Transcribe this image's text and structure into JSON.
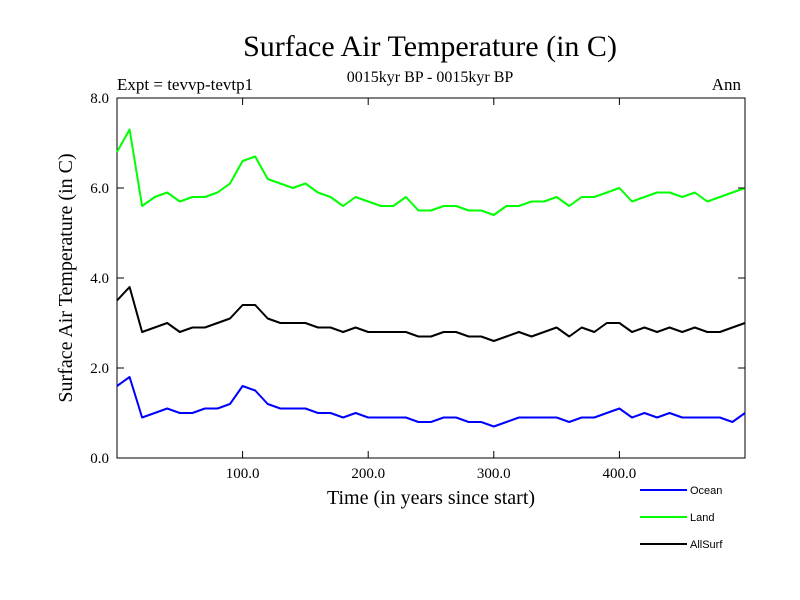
{
  "chart_data": {
    "type": "line",
    "title": "Surface Air Temperature (in C)",
    "subtitle": "0015kyr BP - 0015kyr BP",
    "expt_label": "Expt = tevvp-tevtp1",
    "season_label": "Ann",
    "xlabel": "Time (in years since start)",
    "ylabel": "Surface Air Temperature (in C)",
    "xlim": [
      0,
      500
    ],
    "ylim": [
      0,
      8
    ],
    "x_ticks": [
      100,
      200,
      300,
      400
    ],
    "x_tick_labels": [
      "100.0",
      "200.0",
      "300.0",
      "400.0"
    ],
    "y_ticks": [
      0,
      2,
      4,
      6,
      8
    ],
    "y_tick_labels": [
      "0.0",
      "2.0",
      "4.0",
      "6.0",
      "8.0"
    ],
    "grid": false,
    "legend_position": "bottom-right",
    "x_step": 10,
    "series": [
      {
        "name": "Land",
        "color": "#00ff00",
        "values": [
          6.8,
          7.3,
          5.6,
          5.8,
          5.9,
          5.7,
          5.8,
          5.8,
          5.9,
          6.1,
          6.6,
          6.7,
          6.2,
          6.1,
          6.0,
          6.1,
          5.9,
          5.8,
          5.6,
          5.8,
          5.7,
          5.6,
          5.6,
          5.8,
          5.5,
          5.5,
          5.6,
          5.6,
          5.5,
          5.5,
          5.4,
          5.6,
          5.6,
          5.7,
          5.7,
          5.8,
          5.6,
          5.8,
          5.8,
          5.9,
          6.0,
          5.7,
          5.8,
          5.9,
          5.9,
          5.8,
          5.9,
          5.7,
          5.8,
          5.9,
          6.0
        ]
      },
      {
        "name": "AllSurf",
        "color": "#000000",
        "values": [
          3.5,
          3.8,
          2.8,
          2.9,
          3.0,
          2.8,
          2.9,
          2.9,
          3.0,
          3.1,
          3.4,
          3.4,
          3.1,
          3.0,
          3.0,
          3.0,
          2.9,
          2.9,
          2.8,
          2.9,
          2.8,
          2.8,
          2.8,
          2.8,
          2.7,
          2.7,
          2.8,
          2.8,
          2.7,
          2.7,
          2.6,
          2.7,
          2.8,
          2.7,
          2.8,
          2.9,
          2.7,
          2.9,
          2.8,
          3.0,
          3.0,
          2.8,
          2.9,
          2.8,
          2.9,
          2.8,
          2.9,
          2.8,
          2.8,
          2.9,
          3.0
        ]
      },
      {
        "name": "Ocean",
        "color": "#0000ff",
        "values": [
          1.6,
          1.8,
          0.9,
          1.0,
          1.1,
          1.0,
          1.0,
          1.1,
          1.1,
          1.2,
          1.6,
          1.5,
          1.2,
          1.1,
          1.1,
          1.1,
          1.0,
          1.0,
          0.9,
          1.0,
          0.9,
          0.9,
          0.9,
          0.9,
          0.8,
          0.8,
          0.9,
          0.9,
          0.8,
          0.8,
          0.7,
          0.8,
          0.9,
          0.9,
          0.9,
          0.9,
          0.8,
          0.9,
          0.9,
          1.0,
          1.1,
          0.9,
          1.0,
          0.9,
          1.0,
          0.9,
          0.9,
          0.9,
          0.9,
          0.8,
          1.0
        ]
      }
    ]
  }
}
